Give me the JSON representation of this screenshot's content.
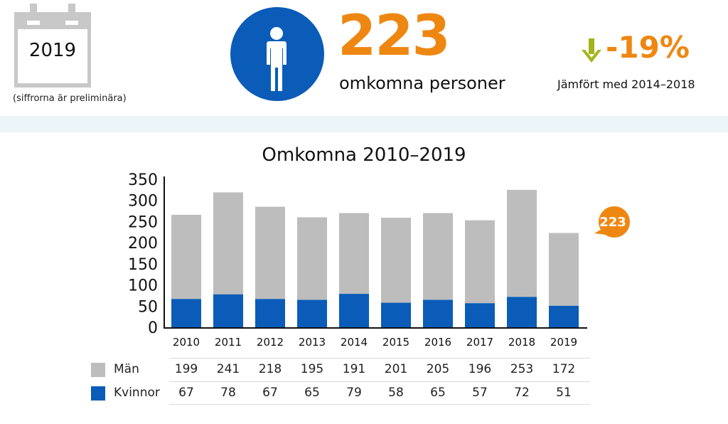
{
  "header": {
    "calendar_year": "2019",
    "calendar_icon": "calendar-icon",
    "preliminary_note": "(siffrorna är preliminära)",
    "person_icon": "person-icon",
    "total_value": "223",
    "total_label": "omkomna personer",
    "change_icon": "arrow-down-icon",
    "change_value": "-19%",
    "change_label": "Jämfört med 2014–2018"
  },
  "colors": {
    "accent_orange": "#ee8711",
    "blue": "#0a5cb8",
    "gray": "#bdbdbd",
    "arrow_green": "#a3b51c",
    "band": "#ecf5f9"
  },
  "callout": {
    "value": "223"
  },
  "chart_data": {
    "type": "bar",
    "stacked": true,
    "title": "Omkomna 2010–2019",
    "xlabel": "",
    "ylabel": "",
    "ylim": [
      0,
      350
    ],
    "yticks": [
      "0",
      "50",
      "100",
      "150",
      "200",
      "250",
      "300",
      "350"
    ],
    "categories": [
      "2010",
      "2011",
      "2012",
      "2013",
      "2014",
      "2015",
      "2016",
      "2017",
      "2018",
      "2019"
    ],
    "series": [
      {
        "name": "Kvinnor",
        "color": "#0a5cb8",
        "values": [
          67,
          78,
          67,
          65,
          79,
          58,
          65,
          57,
          72,
          51
        ]
      },
      {
        "name": "Män",
        "color": "#bdbdbd",
        "values": [
          199,
          241,
          218,
          195,
          191,
          201,
          205,
          196,
          253,
          172
        ]
      }
    ],
    "legend": "bottom-left (table)",
    "grid": false
  },
  "table": {
    "rows": [
      {
        "label": "Män",
        "values": [
          "199",
          "241",
          "218",
          "195",
          "191",
          "201",
          "205",
          "196",
          "253",
          "172"
        ]
      },
      {
        "label": "Kvinnor",
        "values": [
          "67",
          "78",
          "67",
          "65",
          "79",
          "58",
          "65",
          "57",
          "72",
          "51"
        ]
      }
    ]
  }
}
